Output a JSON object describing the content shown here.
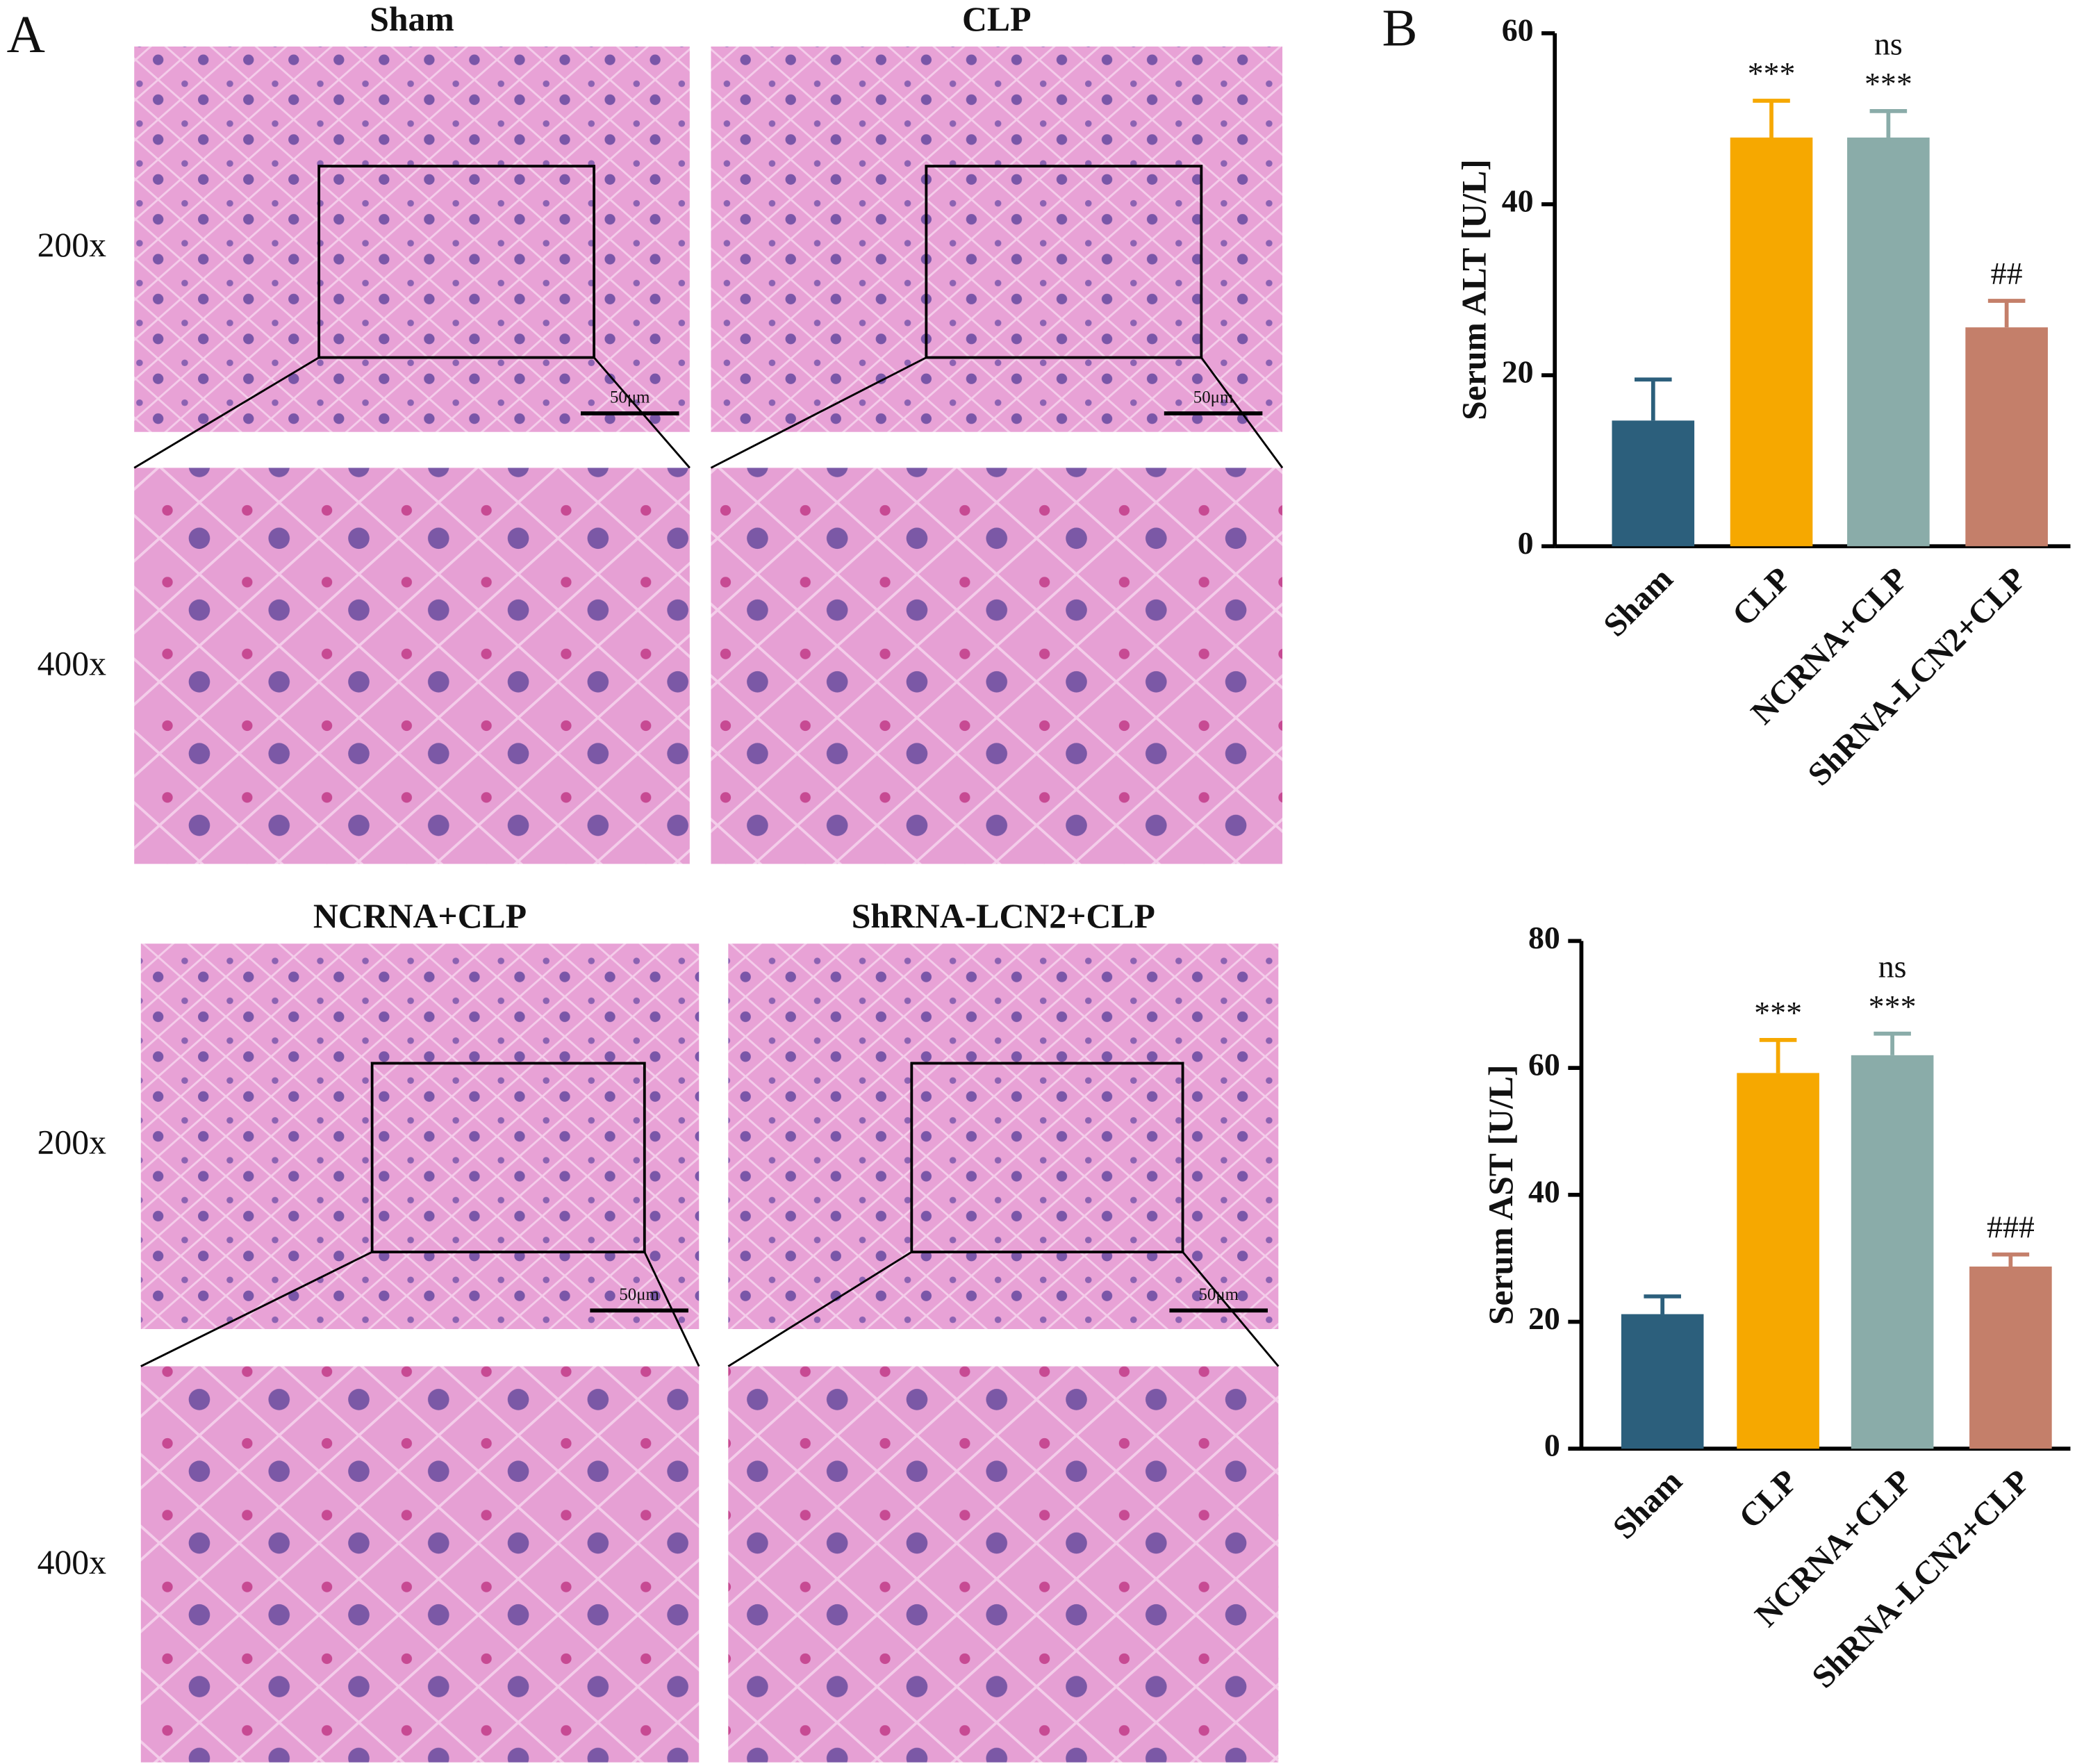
{
  "panel_a": {
    "label": "A",
    "groups": [
      "Sham",
      "CLP",
      "NCRNA+CLP",
      "ShRNA-LCN2+CLP"
    ],
    "magnifications": [
      "200x",
      "400x"
    ],
    "scale_bar": "50μm"
  },
  "panel_b": {
    "label": "B"
  },
  "chart_data": [
    {
      "type": "bar",
      "y_label": "Serum ALT [U/L]",
      "categories": [
        "Sham",
        "CLP",
        "NCRNA+CLP",
        "ShRNA-LCN2+CLP"
      ],
      "values": [
        14.7,
        47.8,
        47.8,
        25.6
      ],
      "errors": [
        4.8,
        4.3,
        3.1,
        3.1
      ],
      "colors": [
        "#2c5f7c",
        "#f6a800",
        "#8aaca9",
        "#c47f6a"
      ],
      "annotations": [
        [],
        [
          "***"
        ],
        [
          "ns",
          "***"
        ],
        [
          "##"
        ]
      ],
      "ylim": [
        0,
        60
      ],
      "yticks": [
        0,
        20,
        40,
        60
      ]
    },
    {
      "type": "bar",
      "y_label": "Serum AST [U/L]",
      "categories": [
        "Sham",
        "CLP",
        "NCRNA+CLP",
        "ShRNA-LCN2+CLP"
      ],
      "values": [
        21.2,
        59.2,
        62.0,
        28.7
      ],
      "errors": [
        2.8,
        5.2,
        3.4,
        1.9
      ],
      "colors": [
        "#2c5f7c",
        "#f6a800",
        "#8aaca9",
        "#c47f6a"
      ],
      "annotations": [
        [],
        [
          "***"
        ],
        [
          "ns",
          "***"
        ],
        [
          "###"
        ]
      ],
      "ylim": [
        0,
        80
      ],
      "yticks": [
        0,
        20,
        40,
        60,
        80
      ]
    }
  ]
}
